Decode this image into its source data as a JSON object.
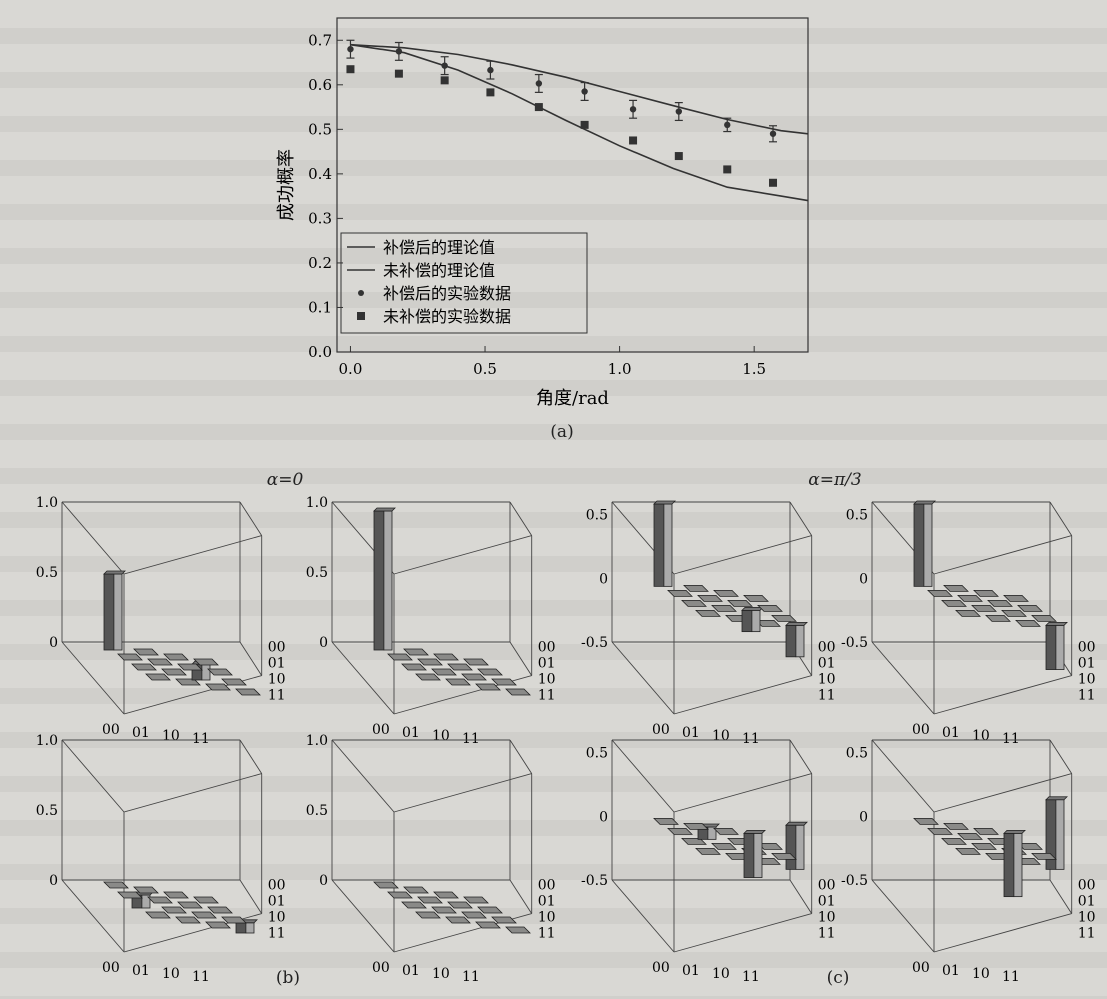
{
  "chart_data": [
    {
      "type": "line",
      "panel": "(a)",
      "ylabel": "成功概率",
      "xlabel": "角度/rad",
      "xlim": [
        -0.05,
        1.7
      ],
      "ylim": [
        0.0,
        0.75
      ],
      "xticks": [
        "0.0",
        "0.5",
        "1.0",
        "1.5"
      ],
      "yticks": [
        "0.0",
        "0.1",
        "0.2",
        "0.3",
        "0.4",
        "0.5",
        "0.6",
        "0.7"
      ],
      "legend_position": "bottom-left",
      "series": [
        {
          "name": "补偿后的理论值",
          "style": "line",
          "x": [
            0.0,
            0.2,
            0.4,
            0.6,
            0.8,
            1.0,
            1.2,
            1.4,
            1.6,
            1.7
          ],
          "y": [
            0.69,
            0.683,
            0.668,
            0.645,
            0.617,
            0.585,
            0.553,
            0.522,
            0.497,
            0.49
          ]
        },
        {
          "name": "未补偿的理论值",
          "style": "line",
          "x": [
            0.0,
            0.2,
            0.4,
            0.6,
            0.8,
            1.0,
            1.2,
            1.4,
            1.6,
            1.7
          ],
          "y": [
            0.69,
            0.672,
            0.633,
            0.58,
            0.52,
            0.463,
            0.412,
            0.37,
            0.35,
            0.34
          ]
        },
        {
          "name": "补偿后的实验数据",
          "style": "circle-errorbar",
          "x": [
            0.0,
            0.18,
            0.35,
            0.52,
            0.7,
            0.87,
            1.05,
            1.22,
            1.4,
            1.57
          ],
          "y": [
            0.68,
            0.675,
            0.643,
            0.633,
            0.603,
            0.585,
            0.545,
            0.54,
            0.51,
            0.49
          ],
          "err": [
            0.02,
            0.02,
            0.02,
            0.02,
            0.02,
            0.02,
            0.02,
            0.02,
            0.015,
            0.018
          ]
        },
        {
          "name": "未补偿的实验数据",
          "style": "square",
          "x": [
            0.0,
            0.18,
            0.35,
            0.52,
            0.7,
            0.87,
            1.05,
            1.22,
            1.4,
            1.57
          ],
          "y": [
            0.635,
            0.625,
            0.61,
            0.583,
            0.55,
            0.51,
            0.475,
            0.44,
            0.41,
            0.38
          ]
        }
      ]
    },
    {
      "type": "bar3d",
      "panel": "(b)",
      "annotation": "α=0",
      "basis": [
        "00",
        "01",
        "10",
        "11"
      ],
      "zticks": [
        "1.0",
        "0.5",
        "0"
      ],
      "plots": [
        {
          "zlim": [
            0,
            1.0
          ],
          "values": [
            [
              0.5,
              0.0,
              0.0,
              0.0
            ],
            [
              0.0,
              0.0,
              0.0,
              0.0
            ],
            [
              0.0,
              0.0,
              0.07,
              0.0
            ],
            [
              0.0,
              0.0,
              0.0,
              0.0
            ]
          ]
        },
        {
          "zlim": [
            0,
            1.0
          ],
          "values": [
            [
              0.95,
              0.0,
              0.0,
              0.0
            ],
            [
              0.0,
              0.0,
              0.0,
              0.0
            ],
            [
              0.0,
              0.0,
              0.0,
              0.0
            ],
            [
              0.0,
              0.0,
              0.0,
              0.0
            ]
          ]
        },
        {
          "zlim": [
            0,
            1.0
          ],
          "values": [
            [
              0.0,
              0.0,
              0.0,
              0.0
            ],
            [
              0.0,
              0.0,
              0.0,
              0.0
            ],
            [
              0.05,
              0.0,
              0.0,
              0.0
            ],
            [
              0.0,
              0.0,
              0.0,
              0.03
            ]
          ]
        },
        {
          "zlim": [
            0,
            1.0
          ],
          "values": [
            [
              0.0,
              0.0,
              0.0,
              0.0
            ],
            [
              0.0,
              0.0,
              0.0,
              0.0
            ],
            [
              0.0,
              0.0,
              0.0,
              0.0
            ],
            [
              0.0,
              0.0,
              0.0,
              0.0
            ]
          ]
        }
      ]
    },
    {
      "type": "bar3d",
      "panel": "(c)",
      "annotation": "α=π/3",
      "basis": [
        "00",
        "01",
        "10",
        "11"
      ],
      "zticks": [
        "0.5",
        "0",
        "-0.5"
      ],
      "plots": [
        {
          "zlim": [
            -0.5,
            0.6
          ],
          "values": [
            [
              0.6,
              0.0,
              0.0,
              0.0
            ],
            [
              0.0,
              0.0,
              0.0,
              0.0
            ],
            [
              0.0,
              0.0,
              -0.12,
              0.0
            ],
            [
              0.0,
              0.0,
              0.0,
              -0.2
            ]
          ]
        },
        {
          "zlim": [
            -0.5,
            0.6
          ],
          "values": [
            [
              0.6,
              0.0,
              0.0,
              0.0
            ],
            [
              0.0,
              0.0,
              0.0,
              0.0
            ],
            [
              0.0,
              0.0,
              0.0,
              0.0
            ],
            [
              0.0,
              0.0,
              0.0,
              -0.3
            ]
          ]
        },
        {
          "zlim": [
            -0.5,
            0.6
          ],
          "values": [
            [
              0.0,
              0.0,
              0.0,
              -0.3
            ],
            [
              0.0,
              0.05,
              0.0,
              0.0
            ],
            [
              0.0,
              0.0,
              0.0,
              0.0
            ],
            [
              0.0,
              0.0,
              0.0,
              0.3
            ]
          ]
        },
        {
          "zlim": [
            -0.5,
            0.6
          ],
          "values": [
            [
              0.0,
              0.0,
              0.0,
              -0.45
            ],
            [
              0.0,
              0.0,
              0.0,
              0.0
            ],
            [
              0.0,
              0.0,
              0.0,
              0.0
            ],
            [
              0.0,
              0.0,
              0.0,
              0.5
            ]
          ]
        }
      ]
    }
  ]
}
